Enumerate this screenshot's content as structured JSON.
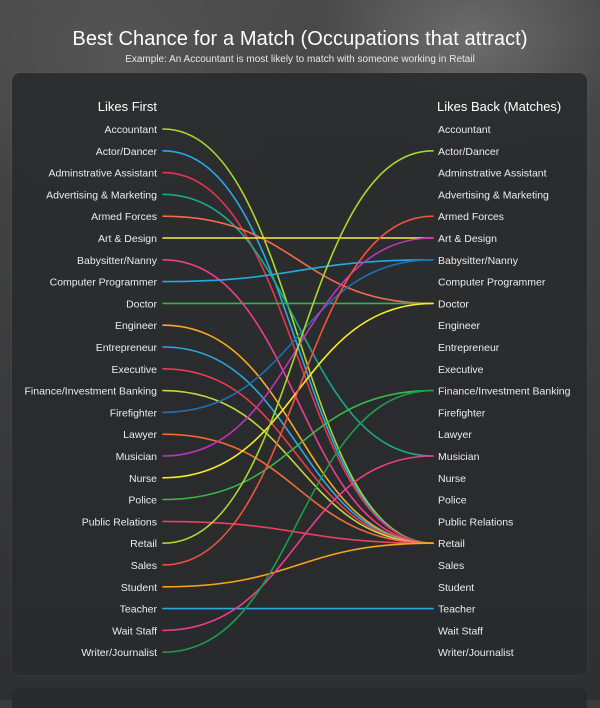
{
  "header": {
    "title": "Best Chance for a Match (Occupations that attract)",
    "subtitle": "Example: An Accountant is most likely to match with someone working in Retail"
  },
  "chart_data": {
    "type": "bump",
    "left_heading": "Likes First",
    "right_heading": "Likes Back (Matches)",
    "occupations": [
      "Accountant",
      "Actor/Dancer",
      "Adminstrative Assistant",
      "Advertising & Marketing",
      "Armed Forces",
      "Art & Design",
      "Babysitter/Nanny",
      "Computer Programmer",
      "Doctor",
      "Engineer",
      "Entrepreneur",
      "Executive",
      "Finance/Investment Banking",
      "Firefighter",
      "Lawyer",
      "Musician",
      "Nurse",
      "Police",
      "Public Relations",
      "Retail",
      "Sales",
      "Student",
      "Teacher",
      "Wait Staff",
      "Writer/Journalist"
    ],
    "matches": [
      {
        "from": "Accountant",
        "to": "Retail",
        "color": "#a6d930"
      },
      {
        "from": "Actor/Dancer",
        "to": "Retail",
        "color": "#27aae1"
      },
      {
        "from": "Adminstrative Assistant",
        "to": "Retail",
        "color": "#e8334f"
      },
      {
        "from": "Advertising & Marketing",
        "to": "Musician",
        "color": "#1aa98a"
      },
      {
        "from": "Armed Forces",
        "to": "Doctor",
        "color": "#f16d4a"
      },
      {
        "from": "Art & Design",
        "to": "Art & Design",
        "color": "#f4ef3b"
      },
      {
        "from": "Babysitter/Nanny",
        "to": "Retail",
        "color": "#ee3d8f"
      },
      {
        "from": "Computer Programmer",
        "to": "Babysitter/Nanny",
        "color": "#27a9e0"
      },
      {
        "from": "Doctor",
        "to": "Doctor",
        "color": "#35b34a"
      },
      {
        "from": "Engineer",
        "to": "Retail",
        "color": "#fbaa22"
      },
      {
        "from": "Entrepreneur",
        "to": "Retail",
        "color": "#27aae1"
      },
      {
        "from": "Executive",
        "to": "Retail",
        "color": "#ec3b4d"
      },
      {
        "from": "Finance/Investment Banking",
        "to": "Retail",
        "color": "#c7d640"
      },
      {
        "from": "Firefighter",
        "to": "Babysitter/Nanny",
        "color": "#1f6fb5"
      },
      {
        "from": "Lawyer",
        "to": "Retail",
        "color": "#f26b32"
      },
      {
        "from": "Musician",
        "to": "Art & Design",
        "color": "#c134b8"
      },
      {
        "from": "Nurse",
        "to": "Doctor",
        "color": "#f8ec27"
      },
      {
        "from": "Police",
        "to": "Finance/Investment Banking",
        "color": "#3bb54a"
      },
      {
        "from": "Public Relations",
        "to": "Retail",
        "color": "#e8415f"
      },
      {
        "from": "Retail",
        "to": "Actor/Dancer",
        "color": "#a6d930"
      },
      {
        "from": "Sales",
        "to": "Armed Forces",
        "color": "#f0533e"
      },
      {
        "from": "Student",
        "to": "Retail",
        "color": "#f9a51a"
      },
      {
        "from": "Teacher",
        "to": "Teacher",
        "color": "#29a9e0"
      },
      {
        "from": "Wait Staff",
        "to": "Musician",
        "color": "#ec3d8b"
      },
      {
        "from": "Writer/Journalist",
        "to": "Finance/Investment Banking",
        "color": "#1a9e4b"
      }
    ]
  }
}
